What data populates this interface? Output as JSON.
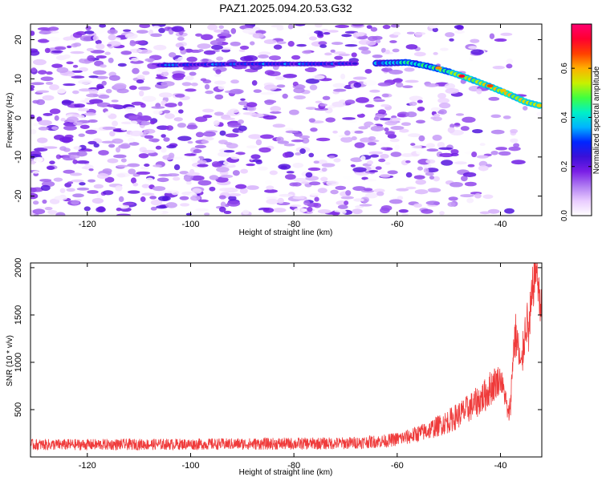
{
  "title": "PAZ1.2025.094.20.53.G32",
  "chart_data": [
    {
      "type": "heatmap",
      "title": "PAZ1.2025.094.20.53.G32",
      "xlabel": "Height of straight line (km)",
      "ylabel": "Frequency (Hz)",
      "xlim": [
        -131,
        -32
      ],
      "ylim": [
        -25,
        24
      ],
      "xticks": [
        -120,
        -100,
        -80,
        -60,
        -40
      ],
      "xtick_labels": [
        "-120",
        "-100",
        "-80",
        "-60",
        "-40"
      ],
      "yticks": [
        -20,
        -10,
        0,
        10,
        20
      ],
      "ytick_labels": [
        "-20",
        "-10",
        "0",
        "10",
        "20"
      ],
      "colorbar": {
        "label": "Normalized spectral amplitude",
        "range": [
          0,
          0.78
        ],
        "ticks": [
          0.0,
          0.2,
          0.4,
          0.6
        ],
        "tick_labels": [
          "0.0",
          "0.2",
          "0.4",
          "0.6"
        ],
        "colors": [
          "#ffffff",
          "#e9ccff",
          "#b07cf2",
          "#7a1ee6",
          "#3a10d8",
          "#0026ff",
          "#00b4ff",
          "#00f0c8",
          "#40ff40",
          "#c8f000",
          "#ffb000",
          "#ff4000",
          "#ff0030",
          "#ff0070"
        ]
      },
      "ridge": {
        "points": [
          [
            -105,
            13.5
          ],
          [
            -90,
            13.8
          ],
          [
            -75,
            13.8
          ],
          [
            -63,
            14
          ],
          [
            -58,
            14.2
          ],
          [
            -54,
            13.2
          ],
          [
            -50,
            11.8
          ],
          [
            -46,
            10
          ],
          [
            -42,
            8
          ],
          [
            -38,
            5.8
          ],
          [
            -35,
            4
          ],
          [
            -32,
            3
          ]
        ],
        "peaks": [
          [
            -52,
            12.8,
            0.62
          ],
          [
            -47.5,
            10.7,
            0.72
          ],
          [
            -42,
            8.2,
            0.66
          ],
          [
            -39.5,
            7,
            0.58
          ]
        ]
      },
      "background_noise_max": 0.22
    },
    {
      "type": "line",
      "xlabel": "Height of straight line (km)",
      "ylabel": "SNR (10 * v/v)",
      "xlim": [
        -131,
        -32
      ],
      "ylim": [
        0,
        2050
      ],
      "xticks": [
        -120,
        -100,
        -80,
        -60,
        -40
      ],
      "xtick_labels": [
        "-120",
        "-100",
        "-80",
        "-60",
        "-40"
      ],
      "yticks": [
        500,
        1000,
        1500,
        2000
      ],
      "ytick_labels": [
        "500",
        "1000",
        "1500",
        "2000"
      ],
      "series": [
        {
          "name": "SNR",
          "color": "#ef3b3b",
          "envelope": {
            "x": [
              -131,
              -120,
              -100,
              -80,
              -70,
              -62,
              -58,
              -54,
              -50,
              -47,
              -45,
              -43,
              -41.5,
              -40,
              -39,
              -38.5,
              -38,
              -37.5,
              -37,
              -36.5,
              -36,
              -35.5,
              -35,
              -34.5,
              -34,
              -33.5,
              -33,
              -32.5,
              -32
            ],
            "mean": [
              130,
              130,
              135,
              140,
              145,
              170,
              210,
              280,
              380,
              480,
              560,
              650,
              760,
              830,
              620,
              420,
              600,
              1150,
              1300,
              1100,
              900,
              1200,
              1450,
              1300,
              1600,
              1900,
              2000,
              1700,
              1550
            ],
            "noise": [
              60,
              60,
              60,
              65,
              65,
              70,
              80,
              100,
              130,
              150,
              160,
              180,
              200,
              150,
              120,
              100,
              150,
              200,
              260,
              240,
              220,
              220,
              240,
              300,
              300,
              250,
              200,
              220,
              200
            ]
          }
        }
      ]
    }
  ]
}
